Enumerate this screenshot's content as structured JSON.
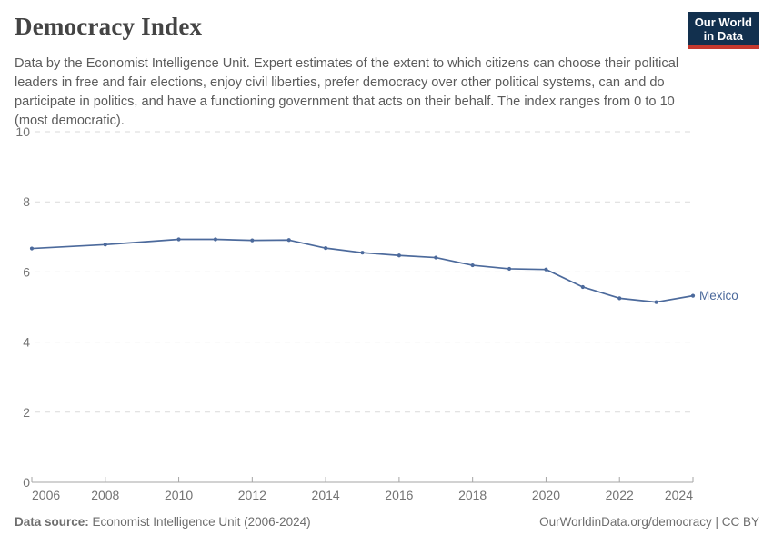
{
  "header": {
    "title": "Democracy Index",
    "subtitle": "Data by the Economist Intelligence Unit. Expert estimates of the extent to which citizens can choose their political leaders in free and fair elections, enjoy civil liberties, prefer democracy over other political systems, can and do participate in politics, and have a functioning government that acts on their behalf. The index ranges from 0 to 10 (most democratic).",
    "logo": {
      "line1": "Our World",
      "line2": "in Data"
    }
  },
  "chart_data": {
    "type": "line",
    "title": "Democracy Index",
    "xlabel": "",
    "ylabel": "",
    "xlim": [
      2006,
      2024
    ],
    "ylim": [
      0,
      10
    ],
    "x_ticks": [
      2006,
      2008,
      2010,
      2012,
      2014,
      2016,
      2018,
      2020,
      2022,
      2024
    ],
    "y_ticks": [
      0,
      2,
      4,
      6,
      8,
      10
    ],
    "grid": "horizontal-dashed",
    "legend_position": "end-of-line",
    "series": [
      {
        "name": "Mexico",
        "x": [
          2006,
          2008,
          2010,
          2011,
          2012,
          2013,
          2014,
          2015,
          2016,
          2017,
          2018,
          2019,
          2020,
          2021,
          2022,
          2023,
          2024
        ],
        "values": [
          6.67,
          6.78,
          6.93,
          6.93,
          6.9,
          6.91,
          6.68,
          6.55,
          6.47,
          6.41,
          6.19,
          6.09,
          6.07,
          5.57,
          5.25,
          5.14,
          5.32
        ]
      }
    ]
  },
  "colors": {
    "series_blue": "#4C6A9C",
    "grid": "#dadada",
    "axis": "#a5a5a5",
    "tick_label": "#737373",
    "logo_bg": "#12304e",
    "logo_accent": "#c5392e"
  },
  "footer": {
    "source_label": "Data source:",
    "source_text": " Economist Intelligence Unit (2006-2024)",
    "link": "OurWorldinData.org/democracy",
    "separator": " | ",
    "license": "CC BY"
  }
}
